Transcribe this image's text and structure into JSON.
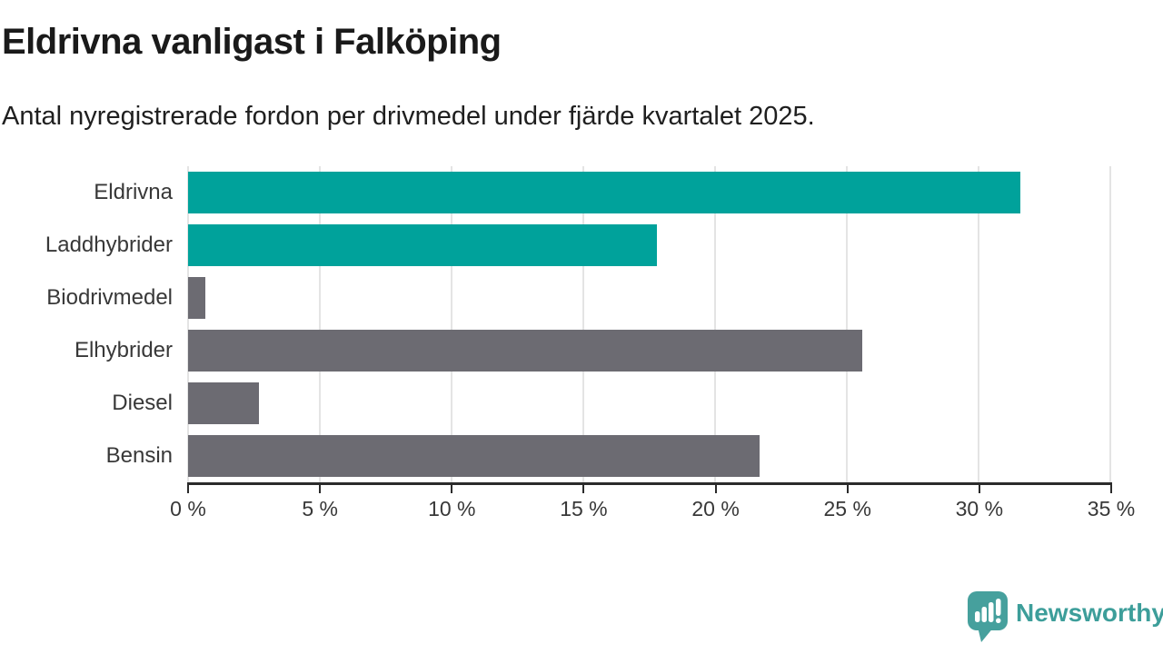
{
  "header": {
    "title": "Eldrivna vanligast i Falköping",
    "subtitle": "Antal nyregistrerade fordon per drivmedel under fjärde kvartalet 2025."
  },
  "chart_data": {
    "type": "bar",
    "orientation": "horizontal",
    "title": "Eldrivna vanligast i Falköping",
    "subtitle": "Antal nyregistrerade fordon per drivmedel under fjärde kvartalet 2025.",
    "categories": [
      "Eldrivna",
      "Laddhybrider",
      "Biodrivmedel",
      "Elhybrider",
      "Diesel",
      "Bensin"
    ],
    "values": [
      31.6,
      17.8,
      0.65,
      25.6,
      2.7,
      21.7
    ],
    "unit": "%",
    "bar_colors": [
      "#00a29b",
      "#00a29b",
      "#6c6b72",
      "#6c6b72",
      "#6c6b72",
      "#6c6b72"
    ],
    "highlight_color": "#00a29b",
    "default_color": "#6c6b72",
    "xlim": [
      0,
      35
    ],
    "x_ticks": [
      0,
      5,
      10,
      15,
      20,
      25,
      30,
      35
    ],
    "x_tick_labels": [
      "0 %",
      "5 %",
      "10 %",
      "15 %",
      "20 %",
      "25 %",
      "30 %",
      "35 %"
    ],
    "xlabel": "",
    "ylabel": "",
    "grid": "vertical",
    "legend": "none"
  },
  "footer": {
    "brand": "Newsworthy",
    "brand_text_color": "#3d9e9a",
    "icon_color": "#46a09d",
    "icon_name": "newsworthy-speech-bubble-chart-icon"
  },
  "colors": {
    "background": "#ffffff",
    "axis": "#2b2b2b",
    "gridline": "#e4e4e4",
    "title_text": "#1a1a1a",
    "label_text": "#383838"
  }
}
